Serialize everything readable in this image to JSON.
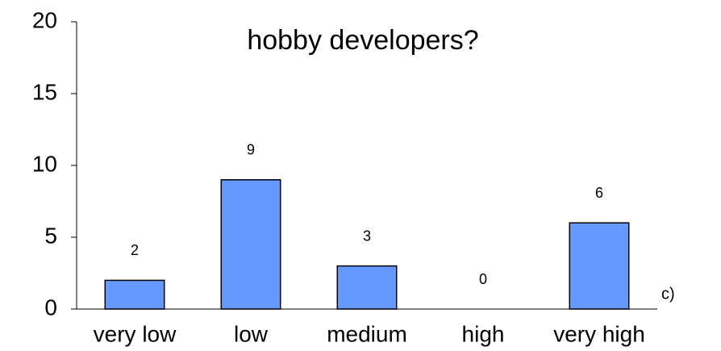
{
  "chart_data": {
    "type": "bar",
    "title": "hobby developers?",
    "categories": [
      "very low",
      "low",
      "medium",
      "high",
      "very high"
    ],
    "values": [
      2,
      9,
      3,
      0,
      6
    ],
    "color": "#6699ff",
    "ylim": [
      0,
      20
    ],
    "yticks": [
      0,
      5,
      10,
      15,
      20
    ],
    "annotation": "c)"
  }
}
